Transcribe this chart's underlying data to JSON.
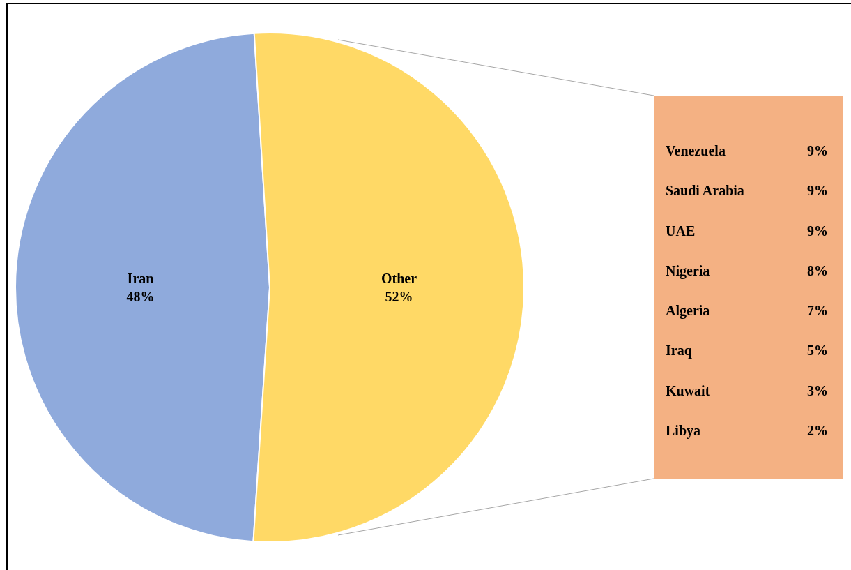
{
  "chart_data": [
    {
      "type": "pie",
      "categories": [
        "Iran",
        "Other"
      ],
      "values": [
        48,
        52
      ],
      "value_labels": [
        "48%",
        "52%"
      ],
      "colors": [
        "#8faadc",
        "#ffd966"
      ],
      "legend": false
    },
    {
      "type": "other",
      "categories": [
        "Venezuela",
        "Saudi Arabia",
        "UAE",
        "Nigeria",
        "Algeria",
        "Iraq",
        "Kuwait",
        "Libya"
      ],
      "values": [
        9,
        9,
        9,
        8,
        7,
        5,
        3,
        2
      ],
      "value_labels": [
        "9%",
        "9%",
        "9%",
        "8%",
        "7%",
        "5%",
        "3%",
        "2%"
      ],
      "color": "#f4b183"
    }
  ]
}
